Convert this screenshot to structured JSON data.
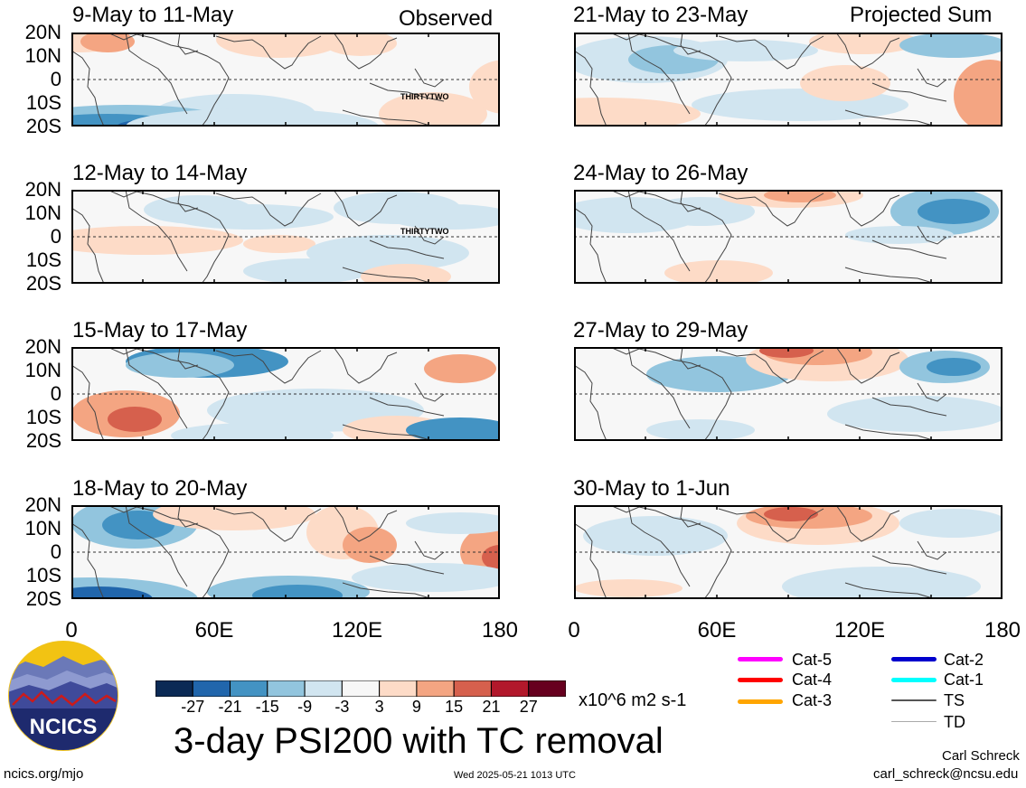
{
  "observed_label": "Observed",
  "projected_label": "Projected Sum",
  "panels_left": [
    {
      "title": "9-May to 11-May",
      "storm_label": "THIRTYTWO"
    },
    {
      "title": "12-May to 14-May",
      "storm_label": "THIRTYTWO"
    },
    {
      "title": "15-May to 17-May",
      "storm_label": ""
    },
    {
      "title": "18-May to 20-May",
      "storm_label": ""
    }
  ],
  "panels_right": [
    {
      "title": "21-May to 23-May"
    },
    {
      "title": "24-May to 26-May"
    },
    {
      "title": "27-May to 29-May"
    },
    {
      "title": "30-May to 1-Jun"
    }
  ],
  "lat_labels": [
    "20N",
    "10N",
    "0",
    "10S",
    "20S"
  ],
  "lon_labels": [
    "0",
    "60E",
    "120E",
    "180"
  ],
  "colorbar": {
    "ticks": [
      "-27",
      "-21",
      "-15",
      "-9",
      "-3",
      "3",
      "9",
      "15",
      "21",
      "27"
    ],
    "colors": [
      "#0b2a55",
      "#2166ac",
      "#4393c3",
      "#92c5de",
      "#d1e5f0",
      "#f7f7f7",
      "#fddbc7",
      "#f4a582",
      "#d6604d",
      "#b2182b",
      "#67001f"
    ],
    "units": "x10^6 m2 s-1"
  },
  "main_title": "3-day PSI200 with TC removal",
  "logo_text": "NCICS",
  "footer_left": "ncics.org/mjo",
  "footer_center": "Wed 2025-05-21 1013 UTC",
  "author_name": "Carl Schreck",
  "author_email": "carl_schreck@ncsu.edu",
  "tc_legend": [
    {
      "label": "Cat-5",
      "color": "#ff00ff"
    },
    {
      "label": "Cat-4",
      "color": "#ff0000"
    },
    {
      "label": "Cat-3",
      "color": "#ffa500"
    },
    {
      "label": "Cat-2",
      "color": "#0000cd"
    },
    {
      "label": "Cat-1",
      "color": "#00ffff"
    },
    {
      "label": "TS",
      "color": "#555555"
    },
    {
      "label": "TD",
      "color": "#aaaaaa"
    }
  ]
}
